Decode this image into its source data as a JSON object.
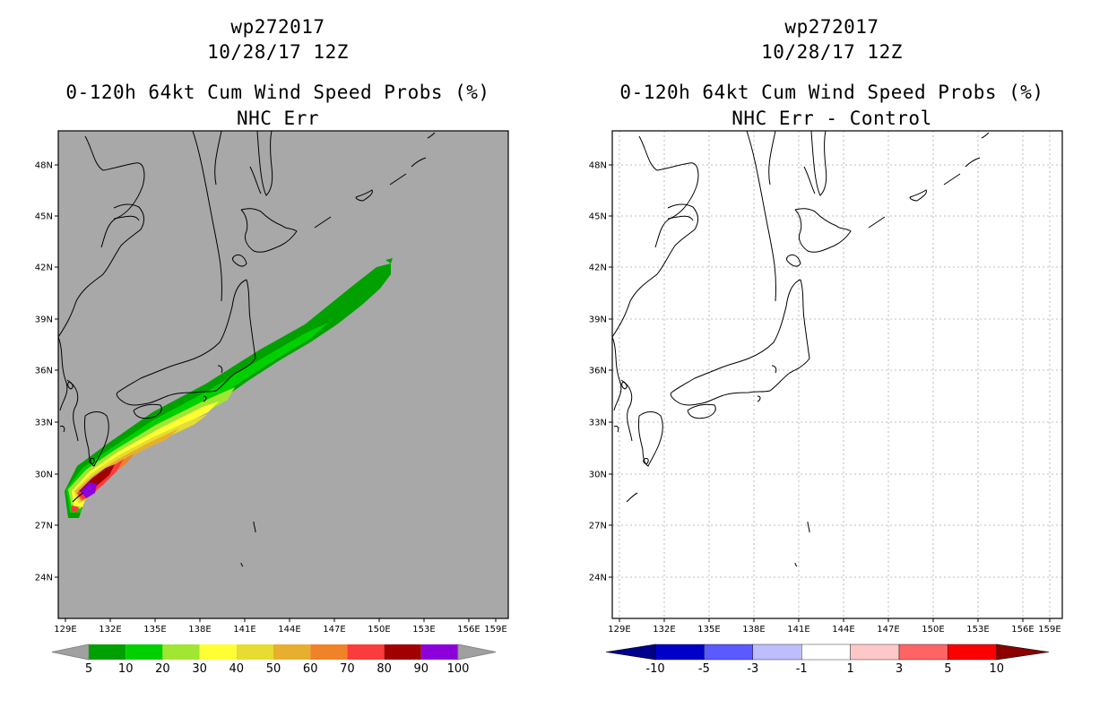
{
  "left_panel": {
    "title_line1": "wp272017",
    "title_line2": "10/28/17 12Z",
    "title_line3": "0-120h 64kt Cum Wind Speed Probs (%)",
    "title_line4": "NHC Err",
    "lat_labels": [
      "48N",
      "45N",
      "42N",
      "39N",
      "36N",
      "33N",
      "30N",
      "27N",
      "24N"
    ],
    "lon_labels": [
      "129E",
      "132E",
      "135E",
      "138E",
      "141E",
      "144E",
      "147E",
      "150E",
      "153E",
      "156E",
      "159E"
    ],
    "colorbar": {
      "labels": [
        "5",
        "10",
        "20",
        "30",
        "40",
        "50",
        "60",
        "70",
        "80",
        "90",
        "100"
      ],
      "colors": [
        "#00a000",
        "#00d000",
        "#a0e632",
        "#ffff33",
        "#e6dc32",
        "#e6af2d",
        "#f08228",
        "#fa3c3c",
        "#a00000",
        "#8c00dc"
      ],
      "end_color": "#a0a0a0"
    },
    "background_color": "#a8a8a8"
  },
  "right_panel": {
    "title_line1": "wp272017",
    "title_line2": "10/28/17 12Z",
    "title_line3": "0-120h 64kt Cum Wind Speed Probs (%)",
    "title_line4": "NHC Err - Control",
    "lat_labels": [
      "48N",
      "45N",
      "42N",
      "39N",
      "36N",
      "33N",
      "30N",
      "27N",
      "24N"
    ],
    "lon_labels": [
      "129E",
      "132E",
      "135E",
      "138E",
      "141E",
      "144E",
      "147E",
      "150E",
      "153E",
      "156E",
      "159E"
    ],
    "colorbar": {
      "labels": [
        "-10",
        "-5",
        "-3",
        "-1",
        "1",
        "3",
        "5",
        "10"
      ],
      "colors": [
        "#0000c8",
        "#5a5aff",
        "#bebeff",
        "#ffffff",
        "#ffc8c8",
        "#ff6464",
        "#ff0000"
      ],
      "left_end_color": "#00008c",
      "right_end_color": "#8c0000"
    },
    "background_color": "#ffffff"
  }
}
